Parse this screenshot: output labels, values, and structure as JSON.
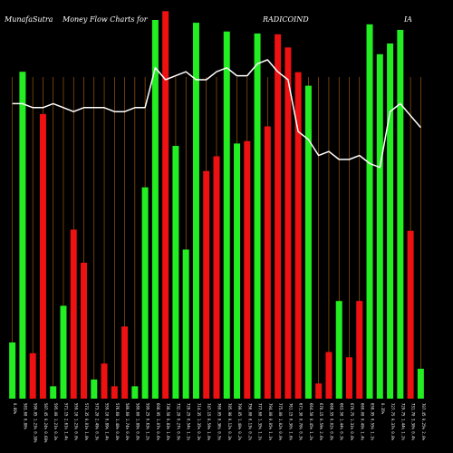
{
  "header": {
    "site": "MunafaSutra",
    "title": "Money Flow  Charts for",
    "symbol": "RADICOIND",
    "exchange": "IA"
  },
  "colors": {
    "background": "#000000",
    "gridline": "#b8650f",
    "inflow_bar": "#22ee22",
    "outflow_bar": "#ee1111",
    "price_line": "#ffffff",
    "text": "#ffffff"
  },
  "chart_data": {
    "type": "bar",
    "y_axis": "none",
    "grid": "vertical",
    "bars": [
      {
        "label": "0.60%",
        "dir": "up",
        "value": 14.1
      },
      {
        "label": "583.60 0.80%",
        "dir": "up",
        "value": 82.0
      },
      {
        "label": "590.85 1.23% 0.38%",
        "dir": "down",
        "value": 11.4
      },
      {
        "label": "587.45 0.24% 0.68%",
        "dir": "down",
        "value": 71.4
      },
      {
        "label": "595.00 1.21% 0.3%",
        "dir": "up",
        "value": 3.1
      },
      {
        "label": "571.15 2.61% 1.4%",
        "dir": "up",
        "value": 23.3
      },
      {
        "label": "559.10 1.23% 0.0%",
        "dir": "down",
        "value": 42.4
      },
      {
        "label": "573.35 0.01% 1.8%",
        "dir": "down",
        "value": 34.1
      },
      {
        "label": "573.20 2.49% 0.3%",
        "dir": "up",
        "value": 4.8
      },
      {
        "label": "559.10 0.89% 1.4%",
        "dir": "down",
        "value": 8.8
      },
      {
        "label": "576.60 1.48% 0.8%",
        "dir": "down",
        "value": 3.1
      },
      {
        "label": "580.60 1.74% 0.0%",
        "dir": "down",
        "value": 18.1
      },
      {
        "label": "589.60 1.89% 0.8%",
        "dir": "up",
        "value": 3.1
      },
      {
        "label": "599.25 0.63% 1.2%",
        "dir": "up",
        "value": 53.0
      },
      {
        "label": "608.95 1.07% 0.6%",
        "dir": "up",
        "value": 95.0
      },
      {
        "label": "738.50 0.83% 1.6%",
        "dir": "down",
        "value": 97.2
      },
      {
        "label": "732.20 0.27% 0.9%",
        "dir": "up",
        "value": 63.4
      },
      {
        "label": "728.25 0.54% 1.1%",
        "dir": "up",
        "value": 37.4
      },
      {
        "label": "714.35 1.35% 0.3%",
        "dir": "up",
        "value": 94.3
      },
      {
        "label": "747.15 0.59% 1.0%",
        "dir": "down",
        "value": 57.1
      },
      {
        "label": "760.05 0.36% 0.5%",
        "dir": "down",
        "value": 60.8
      },
      {
        "label": "785.90 0.12% 0.3%",
        "dir": "up",
        "value": 92.1
      },
      {
        "label": "799.05 1.40% 0.2%",
        "dir": "up",
        "value": 64.0
      },
      {
        "label": "756.00 0.13% 0.2%",
        "dir": "down",
        "value": 64.6
      },
      {
        "label": "777.60 1.35% 1.1%",
        "dir": "up",
        "value": 91.6
      },
      {
        "label": "794.00 0.05% 1.1%",
        "dir": "down",
        "value": 68.3
      },
      {
        "label": "775.00 1.02% 0.0%",
        "dir": "down",
        "value": 91.4
      },
      {
        "label": "761.15 0.30% 1.6%",
        "dir": "down",
        "value": 88.1
      },
      {
        "label": "671.30 0.78% 0.3%",
        "dir": "down",
        "value": 81.9
      },
      {
        "label": "664.50 0.45% 1.2%",
        "dir": "up",
        "value": 78.5
      },
      {
        "label": "678.15 0.59% 2.6%",
        "dir": "down",
        "value": 3.8
      },
      {
        "label": "668.55 0.02% 0.8%",
        "dir": "down",
        "value": 11.7
      },
      {
        "label": "663.50 1.44% 0.3%",
        "dir": "up",
        "value": 24.5
      },
      {
        "label": "679.75 1.31% 0.8%",
        "dir": "down",
        "value": 10.4
      },
      {
        "label": "660.00 0.49% 1.4%",
        "dir": "down",
        "value": 24.5
      },
      {
        "label": "658.95 0.55% 1.1%",
        "dir": "up",
        "value": 93.9
      },
      {
        "label": "0.35%",
        "dir": "up",
        "value": 86.4
      },
      {
        "label": "727.75 0.37% 0.8%",
        "dir": "up",
        "value": 89.1
      },
      {
        "label": "729.75 1.44% 1.2%",
        "dir": "up",
        "value": 92.5
      },
      {
        "label": "731.70 3.30% 0.4%",
        "dir": "down",
        "value": 42.1
      },
      {
        "label": "707.45 0.25% 2.0%",
        "dir": "up",
        "value": 7.5
      }
    ],
    "price_line": [
      74,
      74,
      73,
      73,
      74,
      73,
      72,
      73,
      73,
      73,
      72,
      72,
      73,
      73,
      83,
      80,
      81,
      82,
      80,
      80,
      82,
      83,
      81,
      81,
      84,
      85,
      82,
      80,
      67,
      65,
      61,
      62,
      60,
      60,
      61,
      59,
      58,
      72,
      74,
      71,
      68
    ]
  }
}
